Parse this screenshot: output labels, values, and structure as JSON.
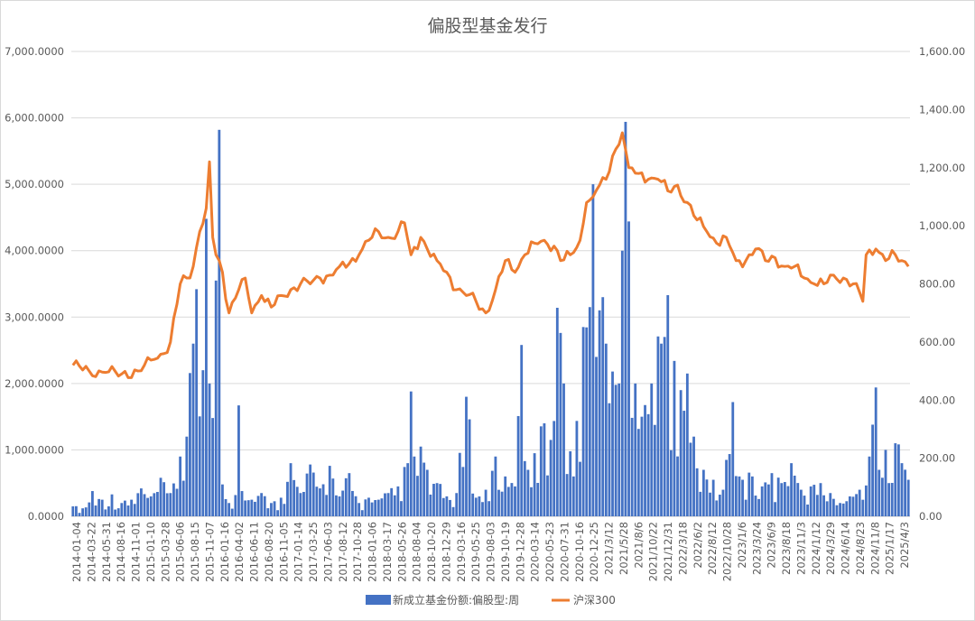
{
  "chart_data": {
    "type": "bar+line",
    "title": "偏股型基金发行",
    "x_tick_labels": [
      "2014-01-04",
      "2014-03-22",
      "2014-05-31",
      "2014-08-16",
      "2014-11-01",
      "2015-01-10",
      "2015-03-28",
      "2015-06-06",
      "2015-08-15",
      "2015-11-07",
      "2016-01-16",
      "2016-04-02",
      "2016-06-11",
      "2016-08-20",
      "2016-11-05",
      "2017-01-14",
      "2017-03-25",
      "2017-06-03",
      "2017-08-12",
      "2017-10-28",
      "2018-01-06",
      "2018-03-17",
      "2018-05-26",
      "2018-08-04",
      "2018-10-20",
      "2018-12-29",
      "2019-03-16",
      "2019-05-25",
      "2019-08-03",
      "2019-10-19",
      "2019-12-28",
      "2020-03-14",
      "2020-05-23",
      "2020-07-31",
      "2020-10-16",
      "2020-12-25",
      "2021/3/12",
      "2021/5/28",
      "2021/8/6",
      "2021/10/22",
      "2021/12/31",
      "2022/3/18",
      "2022/6/2",
      "2022/8/12",
      "2022/10/28",
      "2023/1/6",
      "2023/3/24",
      "2023/6/9",
      "2023/8/18",
      "2023/11/3",
      "2024/1/12",
      "2024/3/29",
      "2024/6/14",
      "2024/8/23",
      "2024/11/8",
      "2025/1/17",
      "2025/4/3"
    ],
    "y_left": {
      "min": 0,
      "max": 7000,
      "step": 1000,
      "tick_labels": [
        "0.0000",
        "1,000.0000",
        "2,000.0000",
        "3,000.0000",
        "4,000.0000",
        "5,000.0000",
        "6,000.0000",
        "7,000.0000"
      ]
    },
    "y_right": {
      "min": 0,
      "max": 1600,
      "step": 200,
      "tick_labels": [
        "0.00",
        "200.00",
        "400.00",
        "600.00",
        "800.00",
        "1,000.00",
        "1,200.00",
        "1,400.00",
        "1,600.00"
      ]
    },
    "grid": true,
    "legend_position": "bottom",
    "series": [
      {
        "name": "新成立基金份额:偏股型:周",
        "kind": "bar",
        "axis": "left",
        "color": "#4472C4",
        "points": [
          [
            0,
            150
          ],
          [
            3,
            120
          ],
          [
            6,
            380
          ],
          [
            9,
            250
          ],
          [
            12,
            330
          ],
          [
            15,
            200
          ],
          [
            18,
            250
          ],
          [
            21,
            420
          ],
          [
            24,
            300
          ],
          [
            27,
            580
          ],
          [
            30,
            350
          ],
          [
            33,
            900
          ],
          [
            35,
            1200
          ],
          [
            37,
            2600
          ],
          [
            38,
            3420
          ],
          [
            40,
            2200
          ],
          [
            41,
            4480
          ],
          [
            42,
            2000
          ],
          [
            43,
            1480
          ],
          [
            44,
            3550
          ],
          [
            45,
            5820
          ],
          [
            46,
            480
          ],
          [
            48,
            200
          ],
          [
            50,
            320
          ],
          [
            51,
            1670
          ],
          [
            52,
            380
          ],
          [
            55,
            250
          ],
          [
            58,
            350
          ],
          [
            61,
            200
          ],
          [
            64,
            280
          ],
          [
            67,
            800
          ],
          [
            70,
            350
          ],
          [
            73,
            780
          ],
          [
            76,
            420
          ],
          [
            79,
            760
          ],
          [
            82,
            300
          ],
          [
            85,
            650
          ],
          [
            88,
            200
          ],
          [
            91,
            280
          ],
          [
            94,
            250
          ],
          [
            97,
            350
          ],
          [
            100,
            450
          ],
          [
            103,
            800
          ],
          [
            104,
            1880
          ],
          [
            105,
            900
          ],
          [
            107,
            1050
          ],
          [
            109,
            700
          ],
          [
            112,
            500
          ],
          [
            115,
            300
          ],
          [
            118,
            350
          ],
          [
            121,
            1800
          ],
          [
            124,
            280
          ],
          [
            127,
            400
          ],
          [
            130,
            900
          ],
          [
            133,
            600
          ],
          [
            136,
            450
          ],
          [
            138,
            2580
          ],
          [
            140,
            700
          ],
          [
            142,
            950
          ],
          [
            145,
            1400
          ],
          [
            147,
            1150
          ],
          [
            149,
            3140
          ],
          [
            151,
            2000
          ],
          [
            154,
            600
          ],
          [
            157,
            2850
          ],
          [
            159,
            3150
          ],
          [
            160,
            5000
          ],
          [
            161,
            2400
          ],
          [
            163,
            3300
          ],
          [
            164,
            2600
          ],
          [
            166,
            2180
          ],
          [
            168,
            2000
          ],
          [
            169,
            4000
          ],
          [
            170,
            5940
          ],
          [
            171,
            4440
          ],
          [
            173,
            2000
          ],
          [
            175,
            1500
          ],
          [
            178,
            2000
          ],
          [
            181,
            2600
          ],
          [
            183,
            3330
          ],
          [
            185,
            2340
          ],
          [
            187,
            1900
          ],
          [
            189,
            2150
          ],
          [
            191,
            1200
          ],
          [
            194,
            700
          ],
          [
            197,
            550
          ],
          [
            200,
            400
          ],
          [
            203,
            1720
          ],
          [
            206,
            550
          ],
          [
            209,
            600
          ],
          [
            212,
            450
          ],
          [
            215,
            650
          ],
          [
            218,
            500
          ],
          [
            221,
            800
          ],
          [
            224,
            400
          ],
          [
            227,
            450
          ],
          [
            230,
            500
          ],
          [
            233,
            350
          ],
          [
            236,
            200
          ],
          [
            239,
            300
          ],
          [
            242,
            400
          ],
          [
            245,
            900
          ],
          [
            246,
            1380
          ],
          [
            247,
            1940
          ],
          [
            248,
            700
          ],
          [
            250,
            1000
          ],
          [
            251,
            500
          ],
          [
            253,
            1100
          ],
          [
            255,
            800
          ],
          [
            257,
            550
          ]
        ]
      },
      {
        "name": "沪深300",
        "kind": "line",
        "axis": "right",
        "color": "#ED7D31",
        "points": [
          [
            0,
            520
          ],
          [
            5,
            500
          ],
          [
            10,
            495
          ],
          [
            15,
            490
          ],
          [
            20,
            500
          ],
          [
            25,
            540
          ],
          [
            28,
            560
          ],
          [
            30,
            600
          ],
          [
            33,
            800
          ],
          [
            35,
            820
          ],
          [
            37,
            860
          ],
          [
            39,
            980
          ],
          [
            41,
            1060
          ],
          [
            42,
            1220
          ],
          [
            43,
            960
          ],
          [
            44,
            900
          ],
          [
            45,
            880
          ],
          [
            46,
            840
          ],
          [
            48,
            700
          ],
          [
            51,
            780
          ],
          [
            53,
            820
          ],
          [
            55,
            700
          ],
          [
            58,
            760
          ],
          [
            61,
            720
          ],
          [
            64,
            760
          ],
          [
            67,
            780
          ],
          [
            70,
            800
          ],
          [
            73,
            800
          ],
          [
            76,
            820
          ],
          [
            79,
            830
          ],
          [
            82,
            860
          ],
          [
            85,
            870
          ],
          [
            88,
            900
          ],
          [
            91,
            950
          ],
          [
            94,
            980
          ],
          [
            97,
            960
          ],
          [
            100,
            980
          ],
          [
            102,
            1010
          ],
          [
            104,
            900
          ],
          [
            107,
            960
          ],
          [
            109,
            920
          ],
          [
            112,
            880
          ],
          [
            115,
            840
          ],
          [
            118,
            780
          ],
          [
            121,
            760
          ],
          [
            124,
            740
          ],
          [
            127,
            700
          ],
          [
            130,
            780
          ],
          [
            133,
            880
          ],
          [
            136,
            840
          ],
          [
            139,
            900
          ],
          [
            142,
            940
          ],
          [
            145,
            950
          ],
          [
            148,
            930
          ],
          [
            150,
            880
          ],
          [
            153,
            900
          ],
          [
            156,
            950
          ],
          [
            158,
            1080
          ],
          [
            160,
            1100
          ],
          [
            162,
            1140
          ],
          [
            164,
            1160
          ],
          [
            166,
            1240
          ],
          [
            168,
            1280
          ],
          [
            169,
            1320
          ],
          [
            171,
            1200
          ],
          [
            174,
            1180
          ],
          [
            177,
            1160
          ],
          [
            180,
            1160
          ],
          [
            183,
            1120
          ],
          [
            186,
            1140
          ],
          [
            189,
            1080
          ],
          [
            192,
            1020
          ],
          [
            195,
            980
          ],
          [
            198,
            940
          ],
          [
            201,
            960
          ],
          [
            204,
            880
          ],
          [
            207,
            880
          ],
          [
            210,
            920
          ],
          [
            213,
            880
          ],
          [
            216,
            890
          ],
          [
            219,
            860
          ],
          [
            222,
            860
          ],
          [
            225,
            820
          ],
          [
            228,
            800
          ],
          [
            231,
            800
          ],
          [
            234,
            830
          ],
          [
            237,
            820
          ],
          [
            240,
            800
          ],
          [
            243,
            740
          ],
          [
            244,
            900
          ],
          [
            247,
            920
          ],
          [
            250,
            880
          ],
          [
            253,
            900
          ],
          [
            255,
            880
          ],
          [
            257,
            860
          ]
        ]
      }
    ]
  }
}
